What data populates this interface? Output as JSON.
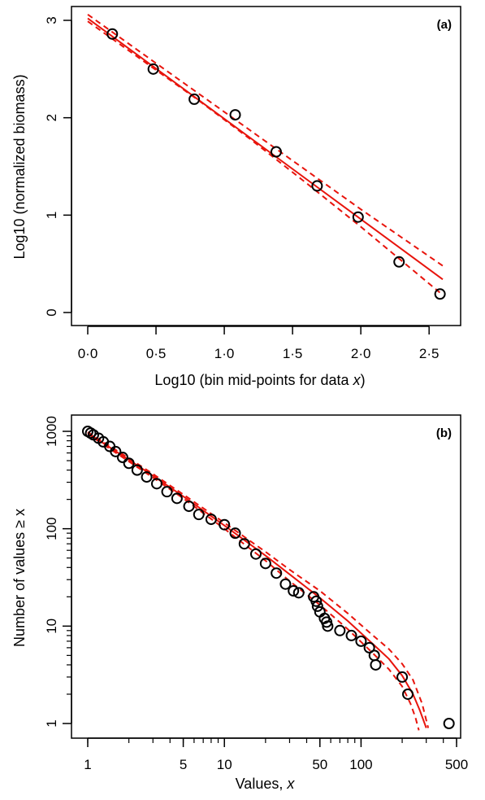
{
  "colors": {
    "fit": "#e8140c",
    "points": "#000000",
    "axis": "#000000"
  },
  "chart_data": [
    {
      "type": "scatter",
      "panel_label": "(a)",
      "xlabel_prefix": "Log10 (bin mid-points for data ",
      "xlabel_italic": "x",
      "xlabel_suffix": ")",
      "ylabel": "Log10 (normalized biomass)",
      "xlim": [
        0,
        2.6
      ],
      "ylim": [
        0,
        3
      ],
      "x_ticks": [
        0,
        0.5,
        1,
        1.5,
        2,
        2.5
      ],
      "x_tick_labels": [
        "0·0",
        "0·5",
        "1·0",
        "1·5",
        "2·0",
        "2·5"
      ],
      "y_ticks": [
        0,
        1,
        2,
        3
      ],
      "y_tick_labels": [
        "0",
        "1",
        "2",
        "3"
      ],
      "points": [
        {
          "x": 0.18,
          "y": 2.86
        },
        {
          "x": 0.48,
          "y": 2.5
        },
        {
          "x": 0.78,
          "y": 2.19
        },
        {
          "x": 1.08,
          "y": 2.03
        },
        {
          "x": 1.38,
          "y": 1.65
        },
        {
          "x": 1.68,
          "y": 1.3
        },
        {
          "x": 1.98,
          "y": 0.98
        },
        {
          "x": 2.28,
          "y": 0.52
        },
        {
          "x": 2.58,
          "y": 0.19
        }
      ],
      "fit_line": {
        "x": [
          0,
          2.6
        ],
        "y": [
          3.02,
          0.34
        ]
      },
      "ci_upper": {
        "x": [
          0,
          0.4,
          0.8,
          1.2,
          1.6,
          2.0,
          2.6
        ],
        "y": [
          3.06,
          2.66,
          2.26,
          1.86,
          1.46,
          1.06,
          0.48
        ]
      },
      "ci_lower": {
        "x": [
          0,
          0.4,
          0.8,
          1.2,
          1.6,
          2.0,
          2.6
        ],
        "y": [
          2.99,
          2.59,
          2.19,
          1.77,
          1.33,
          0.88,
          0.18
        ]
      }
    },
    {
      "type": "scatter",
      "panel_label": "(b)",
      "xlabel_prefix": "Values, ",
      "xlabel_italic": "x",
      "xlabel_suffix": "",
      "ylabel": "Number of values ≥ x",
      "x_scale": "log",
      "y_scale": "log",
      "xlim": [
        1,
        500
      ],
      "ylim": [
        1,
        1000
      ],
      "x_ticks": [
        1,
        5,
        10,
        50,
        100,
        500
      ],
      "x_tick_labels": [
        "1",
        "5",
        "10",
        "50",
        "100",
        "500"
      ],
      "y_ticks": [
        1,
        10,
        100,
        1000
      ],
      "y_tick_labels": [
        "1",
        "10",
        "100",
        "1000"
      ],
      "points": [
        {
          "x": 1.0,
          "y": 1000
        },
        {
          "x": 1.05,
          "y": 960
        },
        {
          "x": 1.1,
          "y": 920
        },
        {
          "x": 1.2,
          "y": 850
        },
        {
          "x": 1.3,
          "y": 780
        },
        {
          "x": 1.45,
          "y": 700
        },
        {
          "x": 1.6,
          "y": 620
        },
        {
          "x": 1.8,
          "y": 540
        },
        {
          "x": 2.0,
          "y": 470
        },
        {
          "x": 2.3,
          "y": 400
        },
        {
          "x": 2.7,
          "y": 340
        },
        {
          "x": 3.2,
          "y": 290
        },
        {
          "x": 3.8,
          "y": 240
        },
        {
          "x": 4.5,
          "y": 205
        },
        {
          "x": 5.5,
          "y": 170
        },
        {
          "x": 6.5,
          "y": 140
        },
        {
          "x": 8.0,
          "y": 125
        },
        {
          "x": 10,
          "y": 110
        },
        {
          "x": 12,
          "y": 90
        },
        {
          "x": 14,
          "y": 70
        },
        {
          "x": 17,
          "y": 55
        },
        {
          "x": 20,
          "y": 44
        },
        {
          "x": 24,
          "y": 35
        },
        {
          "x": 28,
          "y": 27
        },
        {
          "x": 32,
          "y": 23
        },
        {
          "x": 35,
          "y": 22
        },
        {
          "x": 45,
          "y": 20
        },
        {
          "x": 47,
          "y": 18
        },
        {
          "x": 48,
          "y": 16
        },
        {
          "x": 50,
          "y": 14
        },
        {
          "x": 54,
          "y": 12
        },
        {
          "x": 56,
          "y": 11
        },
        {
          "x": 57,
          "y": 10
        },
        {
          "x": 70,
          "y": 9
        },
        {
          "x": 85,
          "y": 8
        },
        {
          "x": 100,
          "y": 7
        },
        {
          "x": 115,
          "y": 6
        },
        {
          "x": 125,
          "y": 5
        },
        {
          "x": 128,
          "y": 4
        },
        {
          "x": 200,
          "y": 3
        },
        {
          "x": 220,
          "y": 2
        },
        {
          "x": 440,
          "y": 1
        }
      ],
      "fit_line": {
        "x": [
          1,
          2,
          3,
          5,
          10,
          20,
          30,
          50,
          80,
          120,
          160,
          200,
          240,
          270,
          300
        ],
        "y": [
          960,
          510,
          350,
          215,
          108,
          53,
          34,
          19.5,
          11.3,
          6.7,
          4.6,
          3.1,
          2.0,
          1.35,
          0.9
        ]
      },
      "ci_upper": {
        "x": [
          1,
          2,
          3,
          5,
          10,
          20,
          30,
          50,
          80,
          120,
          160,
          200,
          240,
          280,
          310
        ],
        "y": [
          980,
          530,
          365,
          225,
          115,
          58,
          38,
          23,
          13.5,
          8.2,
          5.8,
          4.1,
          2.8,
          1.6,
          0.9
        ]
      },
      "ci_lower": {
        "x": [
          1,
          2,
          3,
          5,
          10,
          20,
          30,
          50,
          80,
          120,
          160,
          200,
          230,
          250,
          265
        ],
        "y": [
          940,
          490,
          335,
          205,
          100,
          47,
          29,
          16.5,
          9.3,
          5.4,
          3.6,
          2.4,
          1.6,
          1.15,
          0.85
        ]
      }
    }
  ]
}
